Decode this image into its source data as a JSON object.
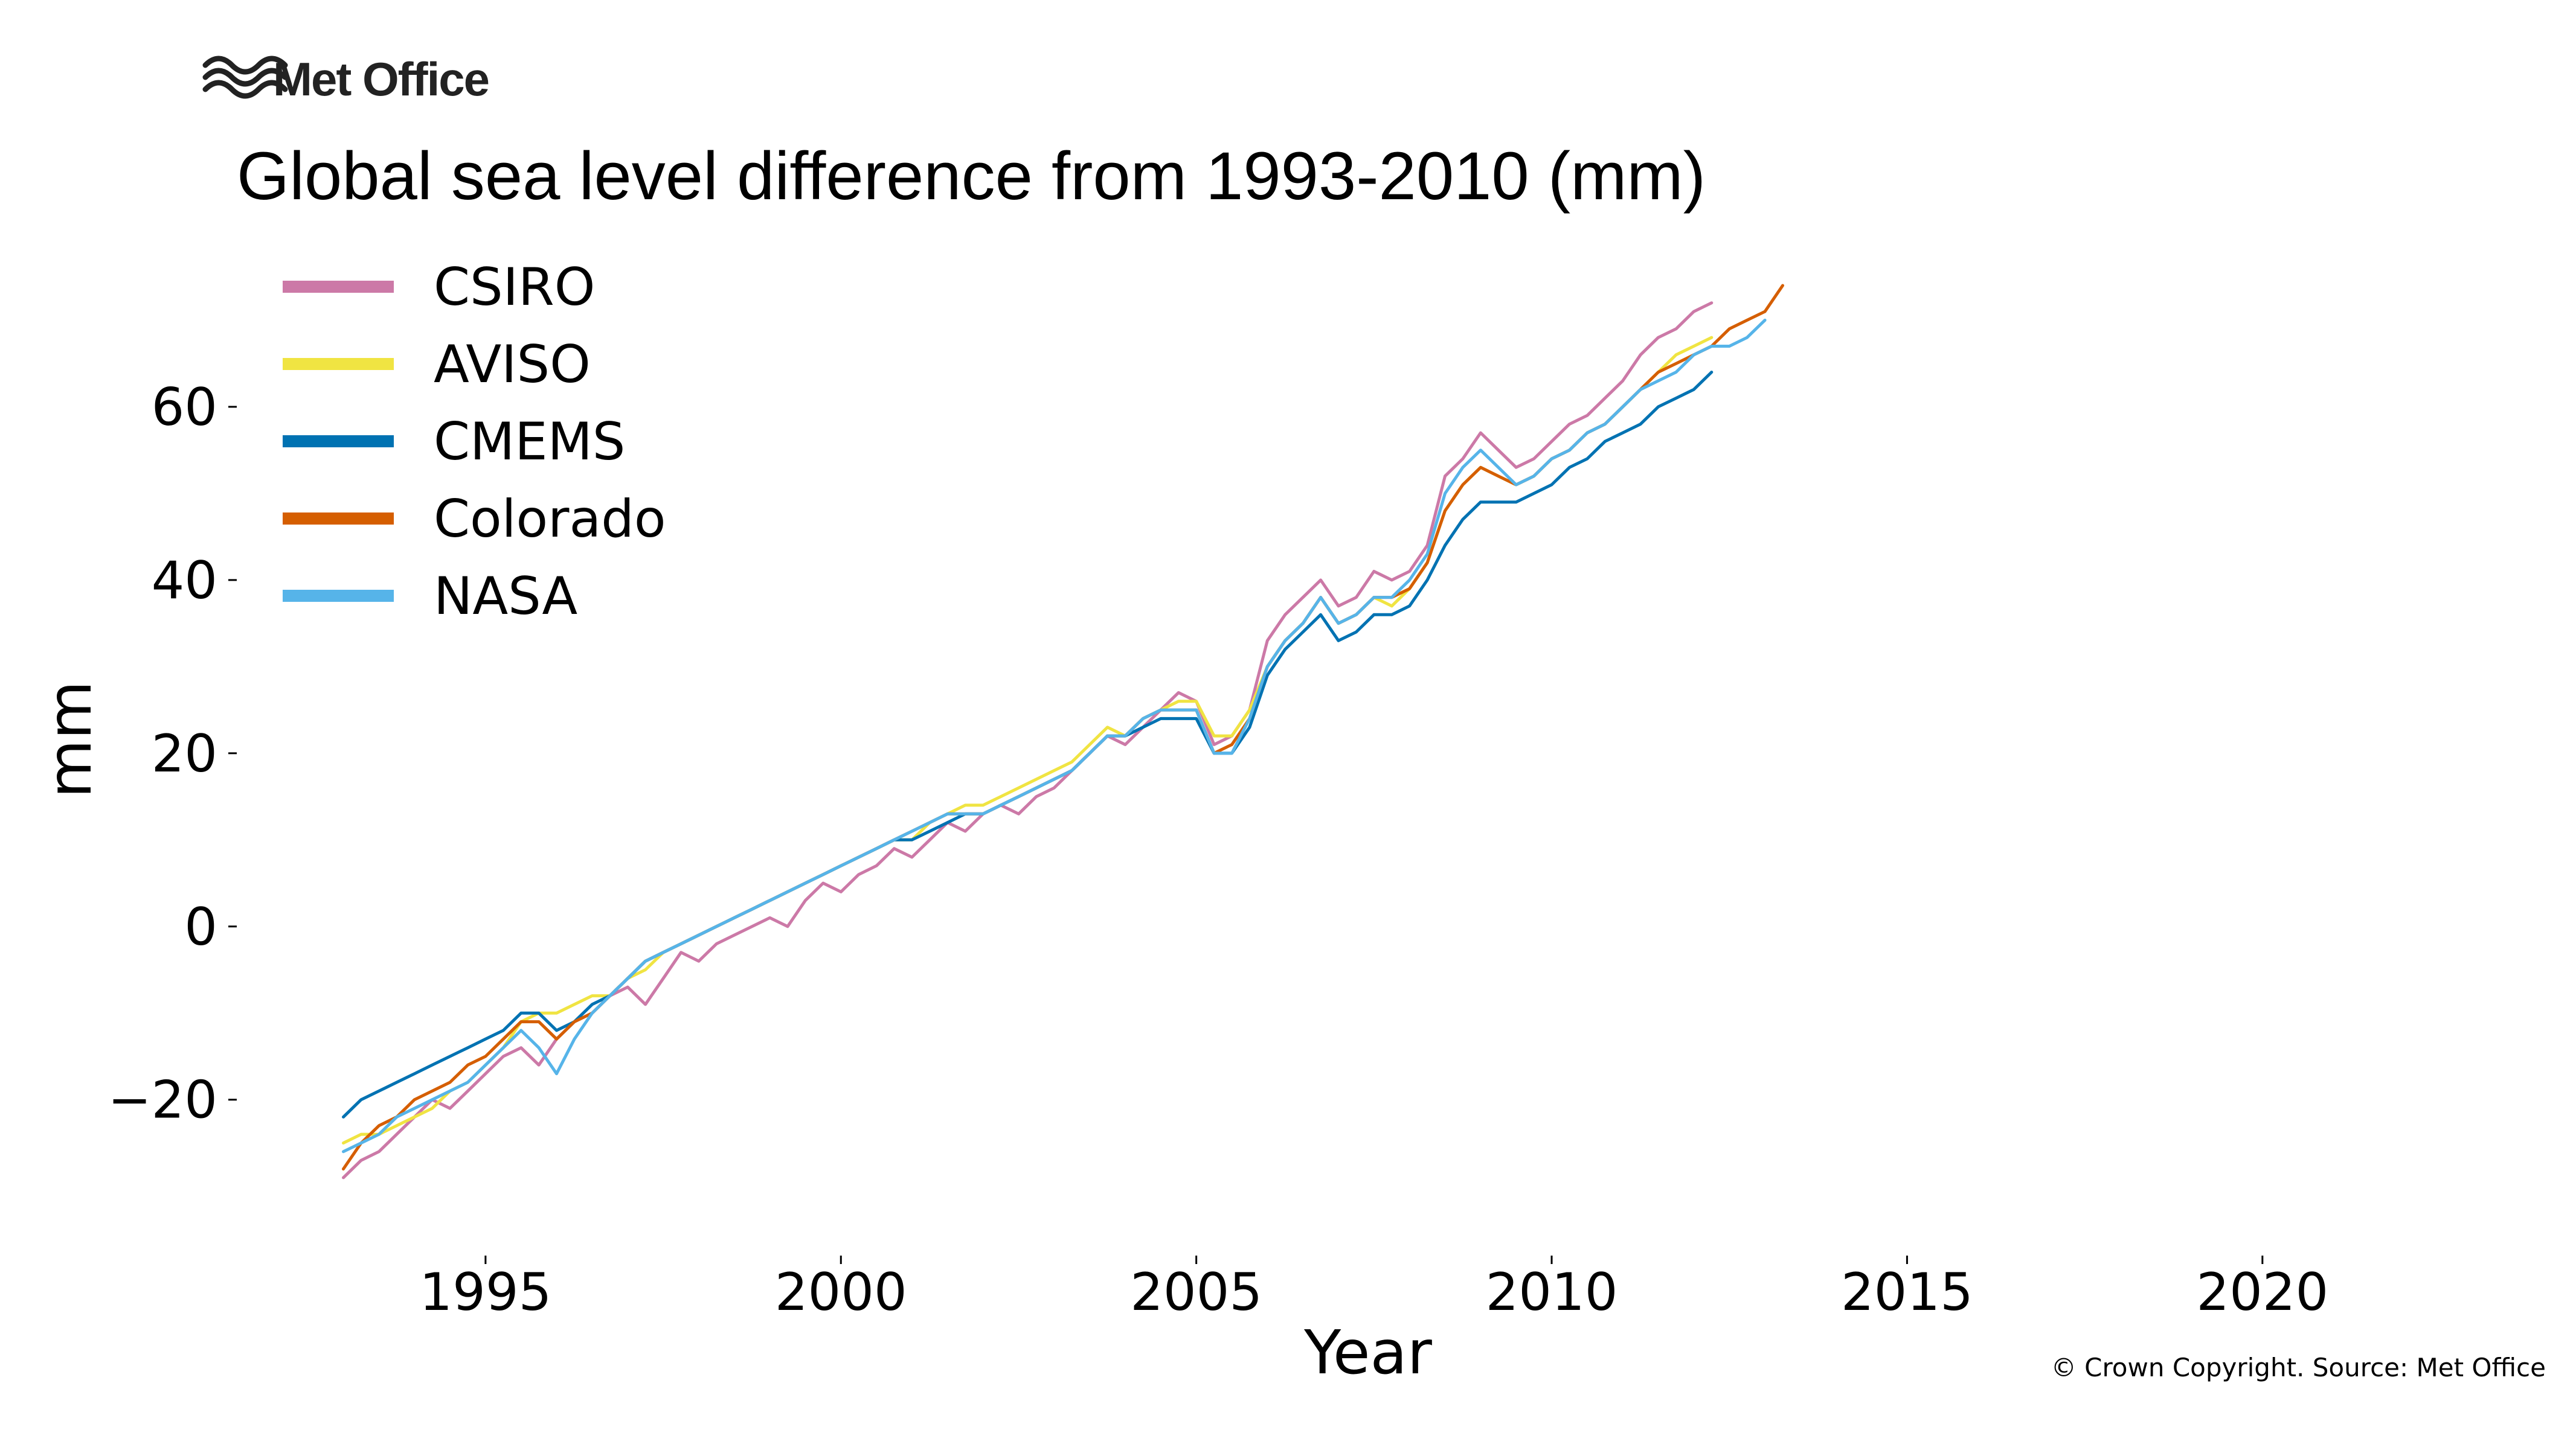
{
  "brand": {
    "name": "Met Office",
    "logo_icon": "met-office-waves-icon"
  },
  "copyright": "© Crown Copyright. Source: Met Office",
  "chart_data": {
    "type": "line",
    "title": "Global sea level difference from 1993-2010 (mm)",
    "xlabel": "Year",
    "ylabel": "mm",
    "xlim": [
      1991.5,
      2022.5
    ],
    "ylim": [
      -38,
      77
    ],
    "xticks": [
      1995,
      2000,
      2005,
      2010,
      2015,
      2020
    ],
    "xtick_labels": [
      "1995",
      "2000",
      "2005",
      "2010",
      "2015",
      "2020"
    ],
    "yticks": [
      -20,
      0,
      20,
      40,
      60
    ],
    "ytick_labels": [
      "−20",
      "0",
      "20",
      "40",
      "60"
    ],
    "grid": false,
    "legend_position": "top-left",
    "series": [
      {
        "name": "CSIRO",
        "color": "#cc79a7",
        "start": 1993.0,
        "step": 0.25,
        "values": [
          -29,
          -27,
          -26,
          -24,
          -22,
          -20,
          -21,
          -19,
          -17,
          -15,
          -14,
          -16,
          -13,
          -11,
          -10,
          -8,
          -7,
          -9,
          -6,
          -3,
          -4,
          -2,
          -1,
          0,
          1,
          0,
          3,
          5,
          4,
          6,
          7,
          9,
          8,
          10,
          12,
          11,
          13,
          14,
          13,
          15,
          16,
          18,
          20,
          22,
          21,
          23,
          25,
          27,
          26,
          21,
          22,
          25,
          33,
          36,
          38,
          40,
          37,
          38,
          41,
          40,
          41,
          44,
          52,
          54,
          57,
          55,
          53,
          54,
          56,
          58,
          59,
          61,
          63,
          66,
          68,
          69,
          71,
          72
        ]
      },
      {
        "name": "AVISO",
        "color": "#f0e442",
        "start": 1993.0,
        "step": 0.25,
        "values": [
          -25,
          -24,
          -24,
          -23,
          -22,
          -21,
          -19,
          -18,
          -16,
          -14,
          -11,
          -10,
          -10,
          -9,
          -8,
          -8,
          -6,
          -5,
          -3,
          -2,
          -1,
          0,
          1,
          2,
          3,
          4,
          5,
          6,
          7,
          8,
          9,
          10,
          10,
          12,
          13,
          14,
          14,
          15,
          16,
          17,
          18,
          19,
          21,
          23,
          22,
          24,
          25,
          26,
          26,
          22,
          22,
          25,
          30,
          33,
          35,
          38,
          35,
          36,
          38,
          37,
          39,
          42,
          48,
          51,
          53,
          52,
          51,
          52,
          54,
          55,
          57,
          58,
          60,
          62,
          64,
          66,
          67,
          68
        ]
      },
      {
        "name": "CMEMS",
        "color": "#0072b2",
        "start": 1993.0,
        "step": 0.25,
        "values": [
          -22,
          -20,
          -19,
          -18,
          -17,
          -16,
          -15,
          -14,
          -13,
          -12,
          -10,
          -10,
          -12,
          -11,
          -9,
          -8,
          -6,
          -4,
          -3,
          -2,
          -1,
          0,
          1,
          2,
          3,
          4,
          5,
          6,
          7,
          8,
          9,
          10,
          10,
          11,
          12,
          13,
          13,
          14,
          15,
          16,
          17,
          18,
          20,
          22,
          22,
          23,
          24,
          24,
          24,
          20,
          20,
          23,
          29,
          32,
          34,
          36,
          33,
          34,
          36,
          36,
          37,
          40,
          44,
          47,
          49,
          49,
          49,
          50,
          51,
          53,
          54,
          56,
          57,
          58,
          60,
          61,
          62,
          64
        ]
      },
      {
        "name": "Colorado",
        "color": "#d55e00",
        "start": 1993.0,
        "step": 0.25,
        "values": [
          -28,
          -25,
          -23,
          -22,
          -20,
          -19,
          -18,
          -16,
          -15,
          -13,
          -11,
          -11,
          -13,
          -11,
          -10,
          -8,
          -6,
          -4,
          -3,
          -2,
          -1,
          0,
          1,
          2,
          3,
          4,
          5,
          6,
          7,
          8,
          9,
          10,
          11,
          12,
          13,
          13,
          13,
          14,
          15,
          16,
          17,
          18,
          20,
          22,
          22,
          24,
          25,
          25,
          25,
          20,
          21,
          24,
          30,
          33,
          35,
          38,
          35,
          36,
          38,
          38,
          39,
          42,
          48,
          51,
          53,
          52,
          51,
          52,
          54,
          55,
          57,
          58,
          60,
          62,
          64,
          65,
          66,
          67,
          69,
          70,
          71,
          74
        ]
      },
      {
        "name": "NASA",
        "color": "#56b4e9",
        "start": 1993.0,
        "step": 0.25,
        "values": [
          -26,
          -25,
          -24,
          -22,
          -21,
          -20,
          -19,
          -18,
          -16,
          -14,
          -12,
          -14,
          -17,
          -13,
          -10,
          -8,
          -6,
          -4,
          -3,
          -2,
          -1,
          0,
          1,
          2,
          3,
          4,
          5,
          6,
          7,
          8,
          9,
          10,
          11,
          12,
          13,
          13,
          13,
          14,
          15,
          16,
          17,
          18,
          20,
          22,
          22,
          24,
          25,
          25,
          25,
          20,
          20,
          24,
          30,
          33,
          35,
          38,
          35,
          36,
          38,
          38,
          40,
          43,
          50,
          53,
          55,
          53,
          51,
          52,
          54,
          55,
          57,
          58,
          60,
          62,
          63,
          64,
          66,
          67,
          67,
          68,
          70
        ]
      }
    ]
  }
}
